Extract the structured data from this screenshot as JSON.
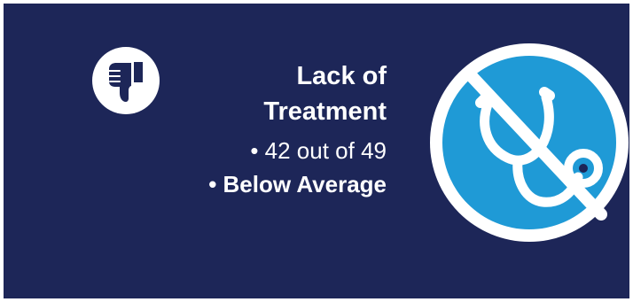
{
  "card": {
    "title_line1": "Lack of",
    "title_line2": "Treatment",
    "stat_rank": "• 42 out of 49",
    "stat_rating": "• Below Average"
  },
  "icons": {
    "rating_icon": "thumbs-down-icon",
    "category_icon": "stethoscope-prohibited-icon"
  },
  "colors": {
    "background": "#1d2658",
    "circle_fill": "#1f9ad6",
    "foreground": "#ffffff"
  }
}
